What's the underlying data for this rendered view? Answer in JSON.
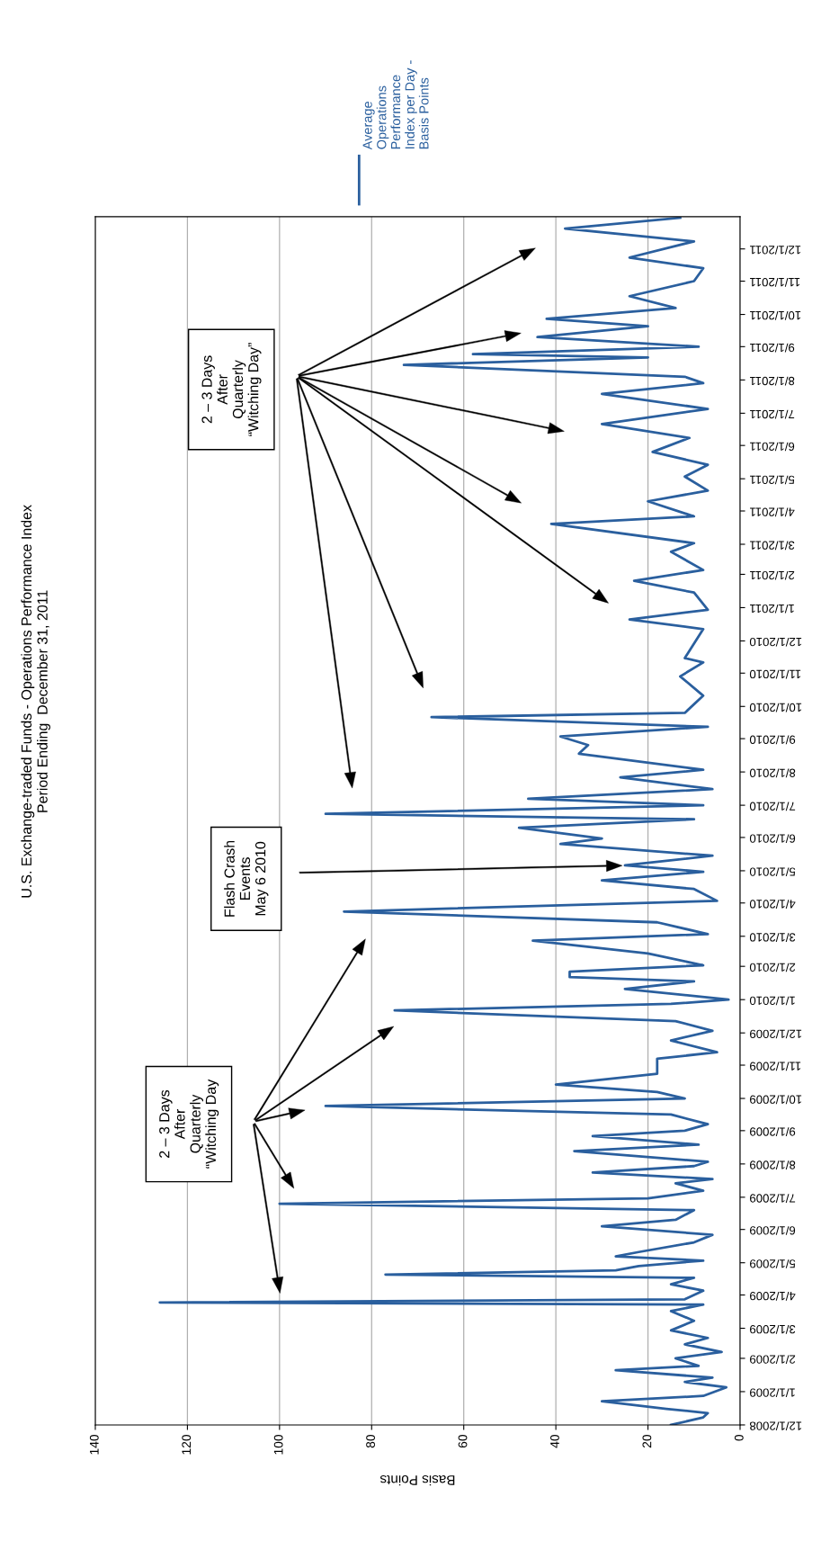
{
  "chart_data": {
    "type": "line",
    "title": "U.S. Exchange-traded Funds - Operations Performance Index",
    "subtitle": "Period Ending  December 31, 2011",
    "orientation": "horizontal",
    "xlabel": "Basis Points",
    "xlim": [
      140,
      0
    ],
    "xticks": [
      140,
      120,
      100,
      80,
      60,
      40,
      20,
      0
    ],
    "ylim": [
      "2008-12-01",
      "2011-12-31"
    ],
    "yticks": [
      {
        "value": "2008-12-01",
        "label": "12/1/2008"
      },
      {
        "value": "2009-01-01",
        "label": "1/1/2009"
      },
      {
        "value": "2009-02-01",
        "label": "2/1/2009"
      },
      {
        "value": "2009-03-01",
        "label": "3/1/2009"
      },
      {
        "value": "2009-04-01",
        "label": "4/1/2009"
      },
      {
        "value": "2009-05-01",
        "label": "5/1/2009"
      },
      {
        "value": "2009-06-01",
        "label": "6/1/2009"
      },
      {
        "value": "2009-07-01",
        "label": "7/1/2009"
      },
      {
        "value": "2009-08-01",
        "label": "8/1/2009"
      },
      {
        "value": "2009-09-01",
        "label": "9/1/2009"
      },
      {
        "value": "2009-10-01",
        "label": "10/1/2009"
      },
      {
        "value": "2009-11-01",
        "label": "11/1/2009"
      },
      {
        "value": "2009-12-01",
        "label": "12/1/2009"
      },
      {
        "value": "2010-01-01",
        "label": "1/1/2010"
      },
      {
        "value": "2010-02-01",
        "label": "2/1/2010"
      },
      {
        "value": "2010-03-01",
        "label": "3/1/2010"
      },
      {
        "value": "2010-04-01",
        "label": "4/1/2010"
      },
      {
        "value": "2010-05-01",
        "label": "5/1/2010"
      },
      {
        "value": "2010-06-01",
        "label": "6/1/2010"
      },
      {
        "value": "2010-07-01",
        "label": "7/1/2010"
      },
      {
        "value": "2010-08-01",
        "label": "8/1/2010"
      },
      {
        "value": "2010-09-01",
        "label": "9/1/2010"
      },
      {
        "value": "2010-10-01",
        "label": "10/1/2010"
      },
      {
        "value": "2010-11-01",
        "label": "11/1/2010"
      },
      {
        "value": "2010-12-01",
        "label": "12/1/2010"
      },
      {
        "value": "2011-01-01",
        "label": "1/1/2011"
      },
      {
        "value": "2011-02-01",
        "label": "2/1/2011"
      },
      {
        "value": "2011-03-01",
        "label": "3/1/2011"
      },
      {
        "value": "2011-04-01",
        "label": "4/1/2011"
      },
      {
        "value": "2011-05-01",
        "label": "5/1/2011"
      },
      {
        "value": "2011-06-01",
        "label": "6/1/2011"
      },
      {
        "value": "2011-07-01",
        "label": "7/1/2011"
      },
      {
        "value": "2011-08-01",
        "label": "8/1/2011"
      },
      {
        "value": "2011-09-01",
        "label": "9/1/2011"
      },
      {
        "value": "2011-10-01",
        "label": "10/1/2011"
      },
      {
        "value": "2011-11-01",
        "label": "11/1/2011"
      },
      {
        "value": "2011-12-01",
        "label": "12/1/2011"
      }
    ],
    "grid": "x",
    "legend": "top",
    "series": [
      {
        "name": "Average Operations Performance Index per Day - Basis Points",
        "color": "#2a5f9e",
        "x": [
          "2008-12-01",
          "2008-12-08",
          "2008-12-12",
          "2008-12-16",
          "2008-12-23",
          "2008-12-28",
          "2009-01-05",
          "2009-01-10",
          "2009-01-14",
          "2009-01-21",
          "2009-01-25",
          "2009-02-01",
          "2009-02-07",
          "2009-02-14",
          "2009-02-20",
          "2009-02-27",
          "2009-03-08",
          "2009-03-17",
          "2009-03-23",
          "2009-03-25",
          "2009-03-28",
          "2009-04-05",
          "2009-04-11",
          "2009-04-17",
          "2009-04-20",
          "2009-04-24",
          "2009-04-28",
          "2009-05-03",
          "2009-05-07",
          "2009-05-11",
          "2009-05-20",
          "2009-05-27",
          "2009-06-04",
          "2009-06-10",
          "2009-06-19",
          "2009-06-25",
          "2009-06-30",
          "2009-07-07",
          "2009-07-14",
          "2009-07-18",
          "2009-07-24",
          "2009-07-30",
          "2009-08-03",
          "2009-08-13",
          "2009-08-19",
          "2009-08-27",
          "2009-09-01",
          "2009-09-07",
          "2009-09-16",
          "2009-09-24",
          "2009-10-01",
          "2009-10-07",
          "2009-10-14",
          "2009-10-24",
          "2009-11-07",
          "2009-11-13",
          "2009-11-24",
          "2009-12-03",
          "2009-12-12",
          "2009-12-22",
          "2009-12-28",
          "2010-01-01",
          "2010-01-11",
          "2010-01-18",
          "2010-01-22",
          "2010-01-27",
          "2010-02-02",
          "2010-02-13",
          "2010-02-25",
          "2010-03-03",
          "2010-03-14",
          "2010-03-24",
          "2010-04-03",
          "2010-04-14",
          "2010-04-22",
          "2010-04-30",
          "2010-05-06",
          "2010-05-15",
          "2010-05-26",
          "2010-05-31",
          "2010-06-10",
          "2010-06-18",
          "2010-06-23",
          "2010-07-01",
          "2010-07-07",
          "2010-07-16",
          "2010-07-27",
          "2010-08-03",
          "2010-08-18",
          "2010-08-26",
          "2010-09-03",
          "2010-09-12",
          "2010-09-21",
          "2010-09-25",
          "2010-10-11",
          "2010-10-29",
          "2010-11-11",
          "2010-11-15",
          "2010-12-12",
          "2010-12-21",
          "2010-12-30",
          "2011-01-15",
          "2011-01-26",
          "2011-02-05",
          "2011-02-22",
          "2011-03-02",
          "2011-03-20",
          "2011-03-27",
          "2011-04-10",
          "2011-04-20",
          "2011-05-03",
          "2011-05-14",
          "2011-05-26",
          "2011-06-08",
          "2011-06-21",
          "2011-07-05",
          "2011-07-19",
          "2011-07-29",
          "2011-08-04",
          "2011-08-15",
          "2011-08-22",
          "2011-08-25",
          "2011-09-01",
          "2011-09-10",
          "2011-09-20",
          "2011-09-27",
          "2011-10-07",
          "2011-10-18",
          "2011-11-01",
          "2011-11-13",
          "2011-11-23",
          "2011-12-08",
          "2011-12-20",
          "2011-12-30"
        ],
        "values": [
          15,
          8,
          7,
          16,
          30,
          8,
          3,
          12,
          6,
          27,
          9,
          14,
          4,
          12,
          7,
          15,
          10,
          15,
          8,
          126,
          12,
          8,
          15,
          10,
          77,
          27,
          22,
          8,
          27,
          22,
          10,
          6,
          30,
          14,
          10,
          100,
          20,
          8,
          14,
          6,
          32,
          10,
          7,
          36,
          9,
          32,
          12,
          7,
          15,
          90,
          12,
          18,
          40,
          18,
          18,
          5,
          15,
          6,
          14,
          75,
          15,
          2.5,
          25,
          10,
          37,
          37,
          8,
          20,
          45,
          7,
          18,
          86,
          5,
          10,
          30,
          8,
          25,
          6,
          39,
          30,
          48,
          10,
          90,
          8,
          46,
          6,
          26,
          8,
          35,
          33,
          39,
          7,
          67,
          12,
          8,
          13,
          8,
          12,
          8,
          24,
          7,
          10,
          23,
          8,
          15,
          10,
          41,
          10,
          20,
          7,
          12,
          7,
          19,
          11,
          30,
          7,
          30,
          8,
          12,
          73,
          20,
          58,
          9,
          44,
          20,
          42,
          14,
          24,
          10,
          8,
          24,
          10,
          38,
          13
        ]
      }
    ],
    "annotations": [
      "2 – 3 Days\nAfter\nQuarterly\n“Witching Day",
      "Flash Crash\nEvents\nMay 6 2010",
      "2 – 3 Days\nAfter\nQuarterly\n“Witching Day”"
    ]
  }
}
